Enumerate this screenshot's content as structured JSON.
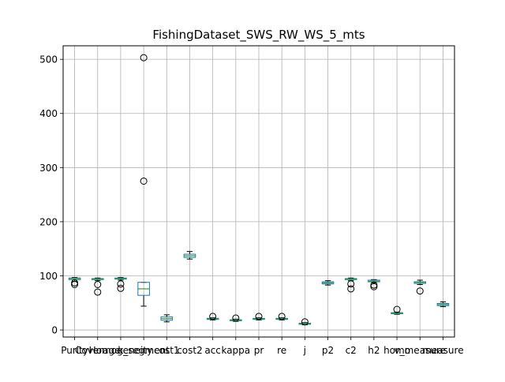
{
  "chart_data": {
    "type": "boxplot",
    "title": "FishingDataset_SWS_RW_WS_5_mts",
    "xlabel": "",
    "ylabel": "",
    "ylim": [
      -13,
      525
    ],
    "y_ticks": [
      0,
      100,
      200,
      300,
      400,
      500
    ],
    "grid": true,
    "colors": {
      "box": "#1f77b4",
      "whisker": "#000000",
      "median": "#2ca02c",
      "grid": "#b0b0b0",
      "axes": "#000000"
    },
    "categories": [
      "Purity",
      "Coverage",
      "Homogeneity",
      "k_segment",
      "cost1",
      "cost2",
      "acc",
      "kappa",
      "pr",
      "re",
      "j",
      "p2",
      "c2",
      "h2",
      "homo",
      "v_measure",
      "measure"
    ],
    "boxes": [
      {
        "label": "Purity",
        "q1": 93,
        "median": 95,
        "q3": 96,
        "whislo": 90,
        "whishi": 97,
        "fliers": [
          84,
          87
        ]
      },
      {
        "label": "Coverage",
        "q1": 93,
        "median": 94,
        "q3": 95,
        "whislo": 91,
        "whishi": 96,
        "fliers": [
          70,
          84
        ]
      },
      {
        "label": "Homogeneity",
        "q1": 94,
        "median": 95,
        "q3": 96,
        "whislo": 92,
        "whishi": 97,
        "fliers": [
          77,
          85
        ]
      },
      {
        "label": "k_segment",
        "q1": 64,
        "median": 76,
        "q3": 88,
        "whislo": 44,
        "whishi": 88,
        "fliers": [
          275,
          503
        ]
      },
      {
        "label": "cost1",
        "q1": 18,
        "median": 21,
        "q3": 24,
        "whislo": 15,
        "whishi": 28,
        "fliers": []
      },
      {
        "label": "cost2",
        "q1": 134,
        "median": 137,
        "q3": 140,
        "whislo": 131,
        "whishi": 145,
        "fliers": []
      },
      {
        "label": "acc",
        "q1": 19.5,
        "median": 20.5,
        "q3": 21.5,
        "whislo": 18.5,
        "whishi": 22.5,
        "fliers": [
          25
        ]
      },
      {
        "label": "kappa",
        "q1": 17,
        "median": 18,
        "q3": 19,
        "whislo": 16,
        "whishi": 20,
        "fliers": [
          22
        ]
      },
      {
        "label": "pr",
        "q1": 19.5,
        "median": 20.5,
        "q3": 21.5,
        "whislo": 18.5,
        "whishi": 22.5,
        "fliers": [
          25
        ]
      },
      {
        "label": "re",
        "q1": 19.5,
        "median": 20.5,
        "q3": 21.5,
        "whislo": 18.5,
        "whishi": 22.5,
        "fliers": [
          25
        ]
      },
      {
        "label": "j",
        "q1": 10.5,
        "median": 11.5,
        "q3": 12.5,
        "whislo": 9.5,
        "whishi": 13.5,
        "fliers": [
          15
        ]
      },
      {
        "label": "p2",
        "q1": 85,
        "median": 87,
        "q3": 89,
        "whislo": 83,
        "whishi": 91,
        "fliers": []
      },
      {
        "label": "c2",
        "q1": 93,
        "median": 94,
        "q3": 95,
        "whislo": 91,
        "whishi": 96,
        "fliers": [
          76,
          85
        ]
      },
      {
        "label": "h2",
        "q1": 89,
        "median": 90,
        "q3": 92,
        "whislo": 87,
        "whishi": 93,
        "fliers": [
          80,
          83
        ]
      },
      {
        "label": "homo",
        "q1": 30,
        "median": 31,
        "q3": 32,
        "whislo": 29,
        "whishi": 33,
        "fliers": [
          38
        ]
      },
      {
        "label": "v_measure",
        "q1": 86,
        "median": 88,
        "q3": 89,
        "whislo": 84,
        "whishi": 92,
        "fliers": [
          72
        ]
      },
      {
        "label": "measure",
        "q1": 45,
        "median": 47,
        "q3": 49,
        "whislo": 43,
        "whishi": 52,
        "fliers": []
      }
    ]
  }
}
